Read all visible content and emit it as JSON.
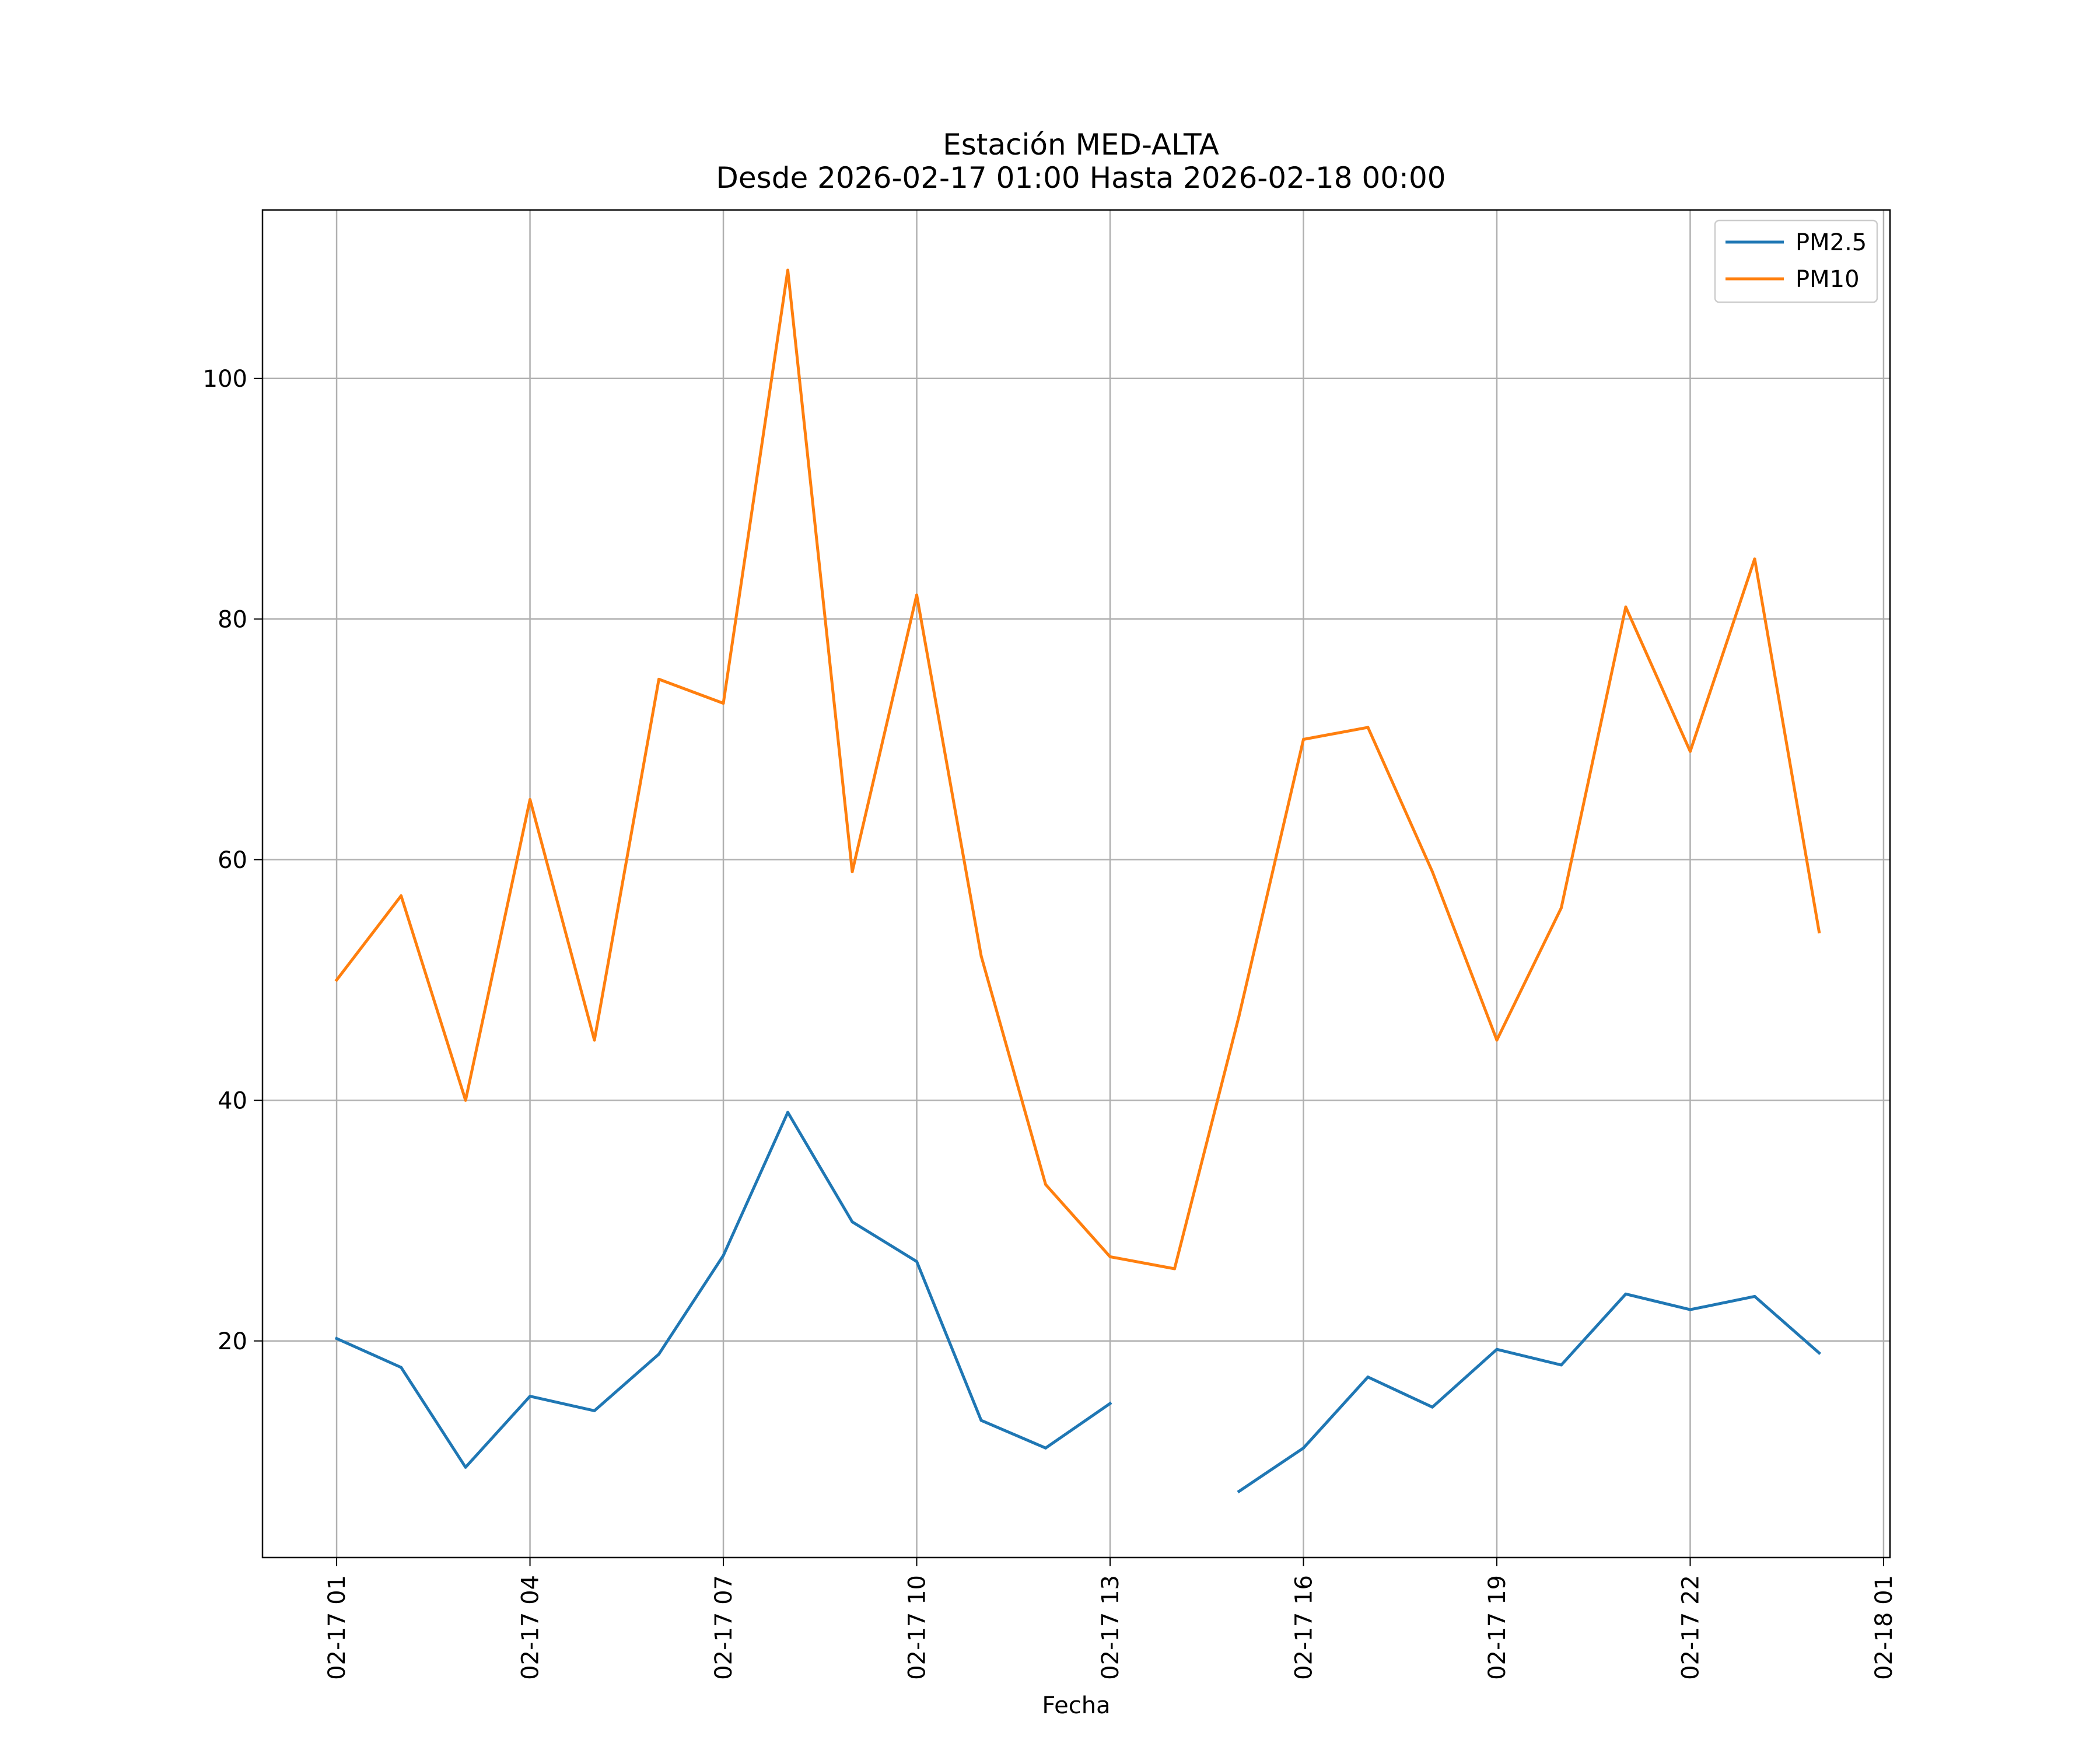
{
  "chart_data": {
    "type": "line",
    "title": "Estación MED-ALTA",
    "subtitle": "Desde 2026-02-17 01:00 Hasta 2026-02-18 00:00",
    "xlabel": "Fecha",
    "ylabel": "",
    "x_hours": [
      1,
      2,
      3,
      4,
      5,
      6,
      7,
      8,
      9,
      10,
      11,
      12,
      13,
      14,
      15,
      16,
      17,
      18,
      19,
      20,
      21,
      22,
      23,
      24
    ],
    "xlim": [
      -0.15,
      25.1
    ],
    "ylim": [
      2,
      114
    ],
    "grid": true,
    "legend_position": "top-right",
    "x_ticks": [
      {
        "value": 1,
        "label": "02-17 01"
      },
      {
        "value": 4,
        "label": "02-17 04"
      },
      {
        "value": 7,
        "label": "02-17 07"
      },
      {
        "value": 10,
        "label": "02-17 10"
      },
      {
        "value": 13,
        "label": "02-17 13"
      },
      {
        "value": 16,
        "label": "02-17 16"
      },
      {
        "value": 19,
        "label": "02-17 19"
      },
      {
        "value": 22,
        "label": "02-17 22"
      },
      {
        "value": 25,
        "label": "02-18 01"
      }
    ],
    "y_ticks": [
      {
        "value": 20,
        "label": "20"
      },
      {
        "value": 40,
        "label": "40"
      },
      {
        "value": 60,
        "label": "60"
      },
      {
        "value": 80,
        "label": "80"
      },
      {
        "value": 100,
        "label": "100"
      }
    ],
    "series": [
      {
        "name": "PM2.5",
        "color": "#1f77b4",
        "values": [
          20.2,
          17.8,
          9.5,
          15.4,
          14.2,
          18.9,
          27.1,
          39,
          29.9,
          26.6,
          13.4,
          11.1,
          14.8,
          null,
          7.5,
          11.1,
          17,
          14.5,
          19.3,
          18,
          23.9,
          22.6,
          23.7,
          19
        ]
      },
      {
        "name": "PM10",
        "color": "#ff7f0e",
        "values": [
          50,
          57,
          40,
          65,
          45,
          75,
          73,
          109,
          59,
          82,
          52,
          33,
          27,
          26,
          47,
          70,
          71,
          59,
          45,
          56,
          81,
          69,
          85,
          54
        ]
      }
    ]
  }
}
